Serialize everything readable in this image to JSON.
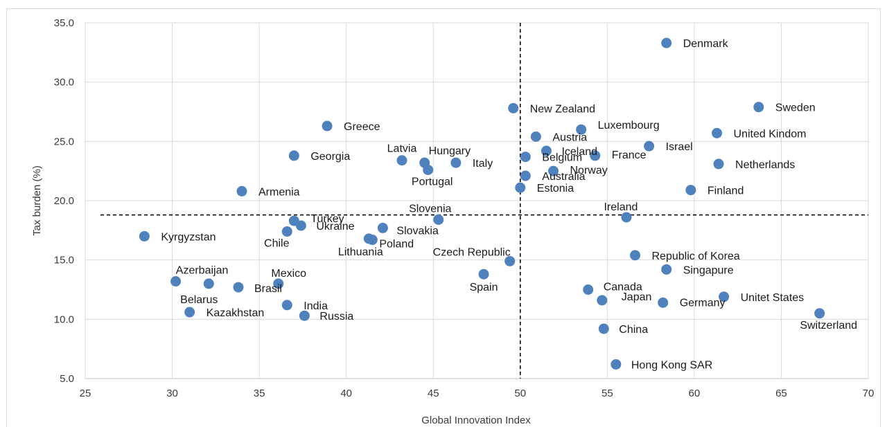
{
  "chart_data": {
    "type": "scatter",
    "xlabel": "Global Innovation Index",
    "ylabel": "Tax burden (%)",
    "xlim": [
      25,
      70
    ],
    "ylim": [
      5,
      35
    ],
    "x_ticks": [
      "25",
      "30",
      "35",
      "40",
      "45",
      "50",
      "55",
      "60",
      "65",
      "70"
    ],
    "y_ticks": [
      "5.0",
      "10.0",
      "15.0",
      "20.0",
      "25.0",
      "30.0",
      "35.0"
    ],
    "grid": true,
    "marker_color": "#4f81bd",
    "reference_lines": {
      "x": 50,
      "y": 18.8
    },
    "points": [
      {
        "label": "Denmark",
        "x": 58.4,
        "y": 33.3
      },
      {
        "label": "Sweden",
        "x": 63.7,
        "y": 27.9
      },
      {
        "label": "New Zealand",
        "x": 49.6,
        "y": 27.8
      },
      {
        "label": "Greece",
        "x": 38.9,
        "y": 26.3
      },
      {
        "label": "Luxembourg",
        "x": 53.5,
        "y": 26.0
      },
      {
        "label": "United Kindom",
        "x": 61.3,
        "y": 25.7
      },
      {
        "label": "Austria",
        "x": 50.9,
        "y": 25.4
      },
      {
        "label": "Israel",
        "x": 57.4,
        "y": 24.6
      },
      {
        "label": "Iceland",
        "x": 51.5,
        "y": 24.2
      },
      {
        "label": "France",
        "x": 54.3,
        "y": 23.8
      },
      {
        "label": "Georgia",
        "x": 37.0,
        "y": 23.8
      },
      {
        "label": "Belgium",
        "x": 50.3,
        "y": 23.7
      },
      {
        "label": "Latvia",
        "x": 43.2,
        "y": 23.4
      },
      {
        "label": "Hungary",
        "x": 44.5,
        "y": 23.2
      },
      {
        "label": "Italy",
        "x": 46.3,
        "y": 23.2
      },
      {
        "label": "Netherlands",
        "x": 61.4,
        "y": 23.1
      },
      {
        "label": "Portugal",
        "x": 44.7,
        "y": 22.6
      },
      {
        "label": "Norway",
        "x": 51.9,
        "y": 22.5
      },
      {
        "label": "Australia",
        "x": 50.3,
        "y": 22.1
      },
      {
        "label": "Estonia",
        "x": 50.0,
        "y": 21.1
      },
      {
        "label": "Finland",
        "x": 59.8,
        "y": 20.9
      },
      {
        "label": "Armenia",
        "x": 34.0,
        "y": 20.8
      },
      {
        "label": "Ireland",
        "x": 56.1,
        "y": 18.6
      },
      {
        "label": "Slovenia",
        "x": 45.3,
        "y": 18.4
      },
      {
        "label": "Turkey",
        "x": 37.0,
        "y": 18.3
      },
      {
        "label": "Ukraine",
        "x": 37.4,
        "y": 17.9
      },
      {
        "label": "Slovakia",
        "x": 42.1,
        "y": 17.7
      },
      {
        "label": "Chile",
        "x": 36.6,
        "y": 17.4
      },
      {
        "label": "Kyrgyzstan",
        "x": 28.4,
        "y": 17.0
      },
      {
        "label": "Lithuania",
        "x": 41.3,
        "y": 16.8
      },
      {
        "label": "Poland",
        "x": 41.5,
        "y": 16.7
      },
      {
        "label": "Republic of Korea",
        "x": 56.6,
        "y": 15.4
      },
      {
        "label": "Czech Republic",
        "x": 49.4,
        "y": 14.9
      },
      {
        "label": "Singapure",
        "x": 58.4,
        "y": 14.2
      },
      {
        "label": "Spain",
        "x": 47.9,
        "y": 13.8
      },
      {
        "label": "Azerbaijan",
        "x": 30.2,
        "y": 13.2
      },
      {
        "label": "Belarus",
        "x": 32.1,
        "y": 13.0
      },
      {
        "label": "Mexico",
        "x": 36.1,
        "y": 13.0
      },
      {
        "label": "Brasil",
        "x": 33.8,
        "y": 12.7
      },
      {
        "label": "Canada",
        "x": 53.9,
        "y": 12.5
      },
      {
        "label": "Unitet States",
        "x": 61.7,
        "y": 11.9
      },
      {
        "label": "Japan",
        "x": 54.7,
        "y": 11.6
      },
      {
        "label": "Germany",
        "x": 58.2,
        "y": 11.4
      },
      {
        "label": "India",
        "x": 36.6,
        "y": 11.2
      },
      {
        "label": "Kazakhstan",
        "x": 31.0,
        "y": 10.6
      },
      {
        "label": "Switzerland",
        "x": 67.2,
        "y": 10.5
      },
      {
        "label": "Russia",
        "x": 37.6,
        "y": 10.3
      },
      {
        "label": "China",
        "x": 54.8,
        "y": 9.2
      },
      {
        "label": "Hong Kong SAR",
        "x": 55.5,
        "y": 6.2
      }
    ]
  }
}
